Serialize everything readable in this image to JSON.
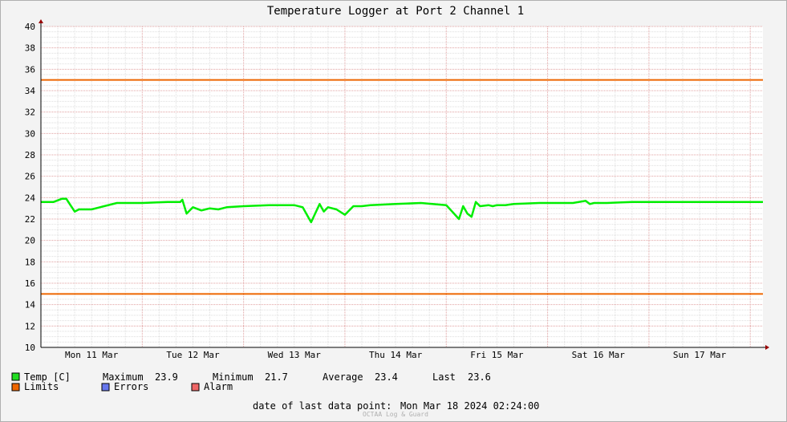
{
  "chart_data": {
    "type": "line",
    "title": "Temperature Logger at Port 2 Channel 1",
    "ylim": [
      10,
      40
    ],
    "y_ticks": [
      10,
      12,
      14,
      16,
      18,
      20,
      22,
      24,
      26,
      28,
      30,
      32,
      34,
      36,
      38,
      40
    ],
    "x_range_hours": [
      0,
      171
    ],
    "x_tick_labels": [
      "Mon 11 Mar",
      "Tue 12 Mar",
      "Wed 13 Mar",
      "Thu 14 Mar",
      "Fri 15 Mar",
      "Sat 16 Mar",
      "Sun 17 Mar"
    ],
    "limits": {
      "upper": 35,
      "lower": 15
    },
    "series": [
      {
        "name": "Temp [C]",
        "color": "#00ff00",
        "x": [
          0,
          3,
          5,
          6,
          7,
          8,
          9,
          10,
          12,
          14,
          18,
          24,
          30,
          33,
          33.5,
          34.5,
          36,
          38,
          40,
          42,
          44,
          48,
          54,
          60,
          62,
          64,
          66,
          67,
          68,
          70,
          72,
          74,
          76,
          78,
          84,
          90,
          96,
          99,
          100,
          101,
          102,
          103,
          104,
          106,
          107,
          108,
          110,
          112,
          118,
          126,
          129,
          130,
          131,
          134,
          140,
          150,
          160,
          171
        ],
        "values": [
          23.6,
          23.6,
          23.9,
          23.9,
          23.3,
          22.7,
          22.9,
          22.9,
          22.9,
          23.1,
          23.5,
          23.5,
          23.6,
          23.6,
          23.8,
          22.5,
          23.1,
          22.8,
          23.0,
          22.9,
          23.1,
          23.2,
          23.3,
          23.3,
          23.1,
          21.7,
          23.4,
          22.7,
          23.1,
          22.9,
          22.4,
          23.2,
          23.2,
          23.3,
          23.4,
          23.5,
          23.3,
          22.0,
          23.2,
          22.5,
          22.2,
          23.6,
          23.2,
          23.3,
          23.2,
          23.3,
          23.3,
          23.4,
          23.5,
          23.5,
          23.7,
          23.4,
          23.5,
          23.5,
          23.6,
          23.6,
          23.6,
          23.6
        ]
      }
    ]
  },
  "stats": {
    "maximum_label": "Maximum",
    "maximum": "23.9",
    "minimum_label": "Minimum",
    "minimum": "21.7",
    "average_label": "Average",
    "average": "23.4",
    "last_label": "Last",
    "last": "23.6"
  },
  "legend": {
    "temp_label": "Temp [C]",
    "temp_color": "#22dd22",
    "limits_label": "Limits",
    "limits_color": "#ee6600",
    "errors_label": "Errors",
    "errors_color": "#6677ee",
    "alarm_label": "Alarm",
    "alarm_color": "#ee6666"
  },
  "footer": {
    "last_point_label": "date of last data point:",
    "last_point_value": "Mon Mar 18 2024 02:24:00",
    "watermark": "OCTAA Log & Guard"
  },
  "colors": {
    "background": "#f3f3f3",
    "plot_background": "#ffffff",
    "grid_minor": "#dedede",
    "grid_major": "#e0a0a0",
    "limit_line": "#ee6600",
    "temp_line": "#00ee00",
    "axis_arrow": "#990000"
  }
}
